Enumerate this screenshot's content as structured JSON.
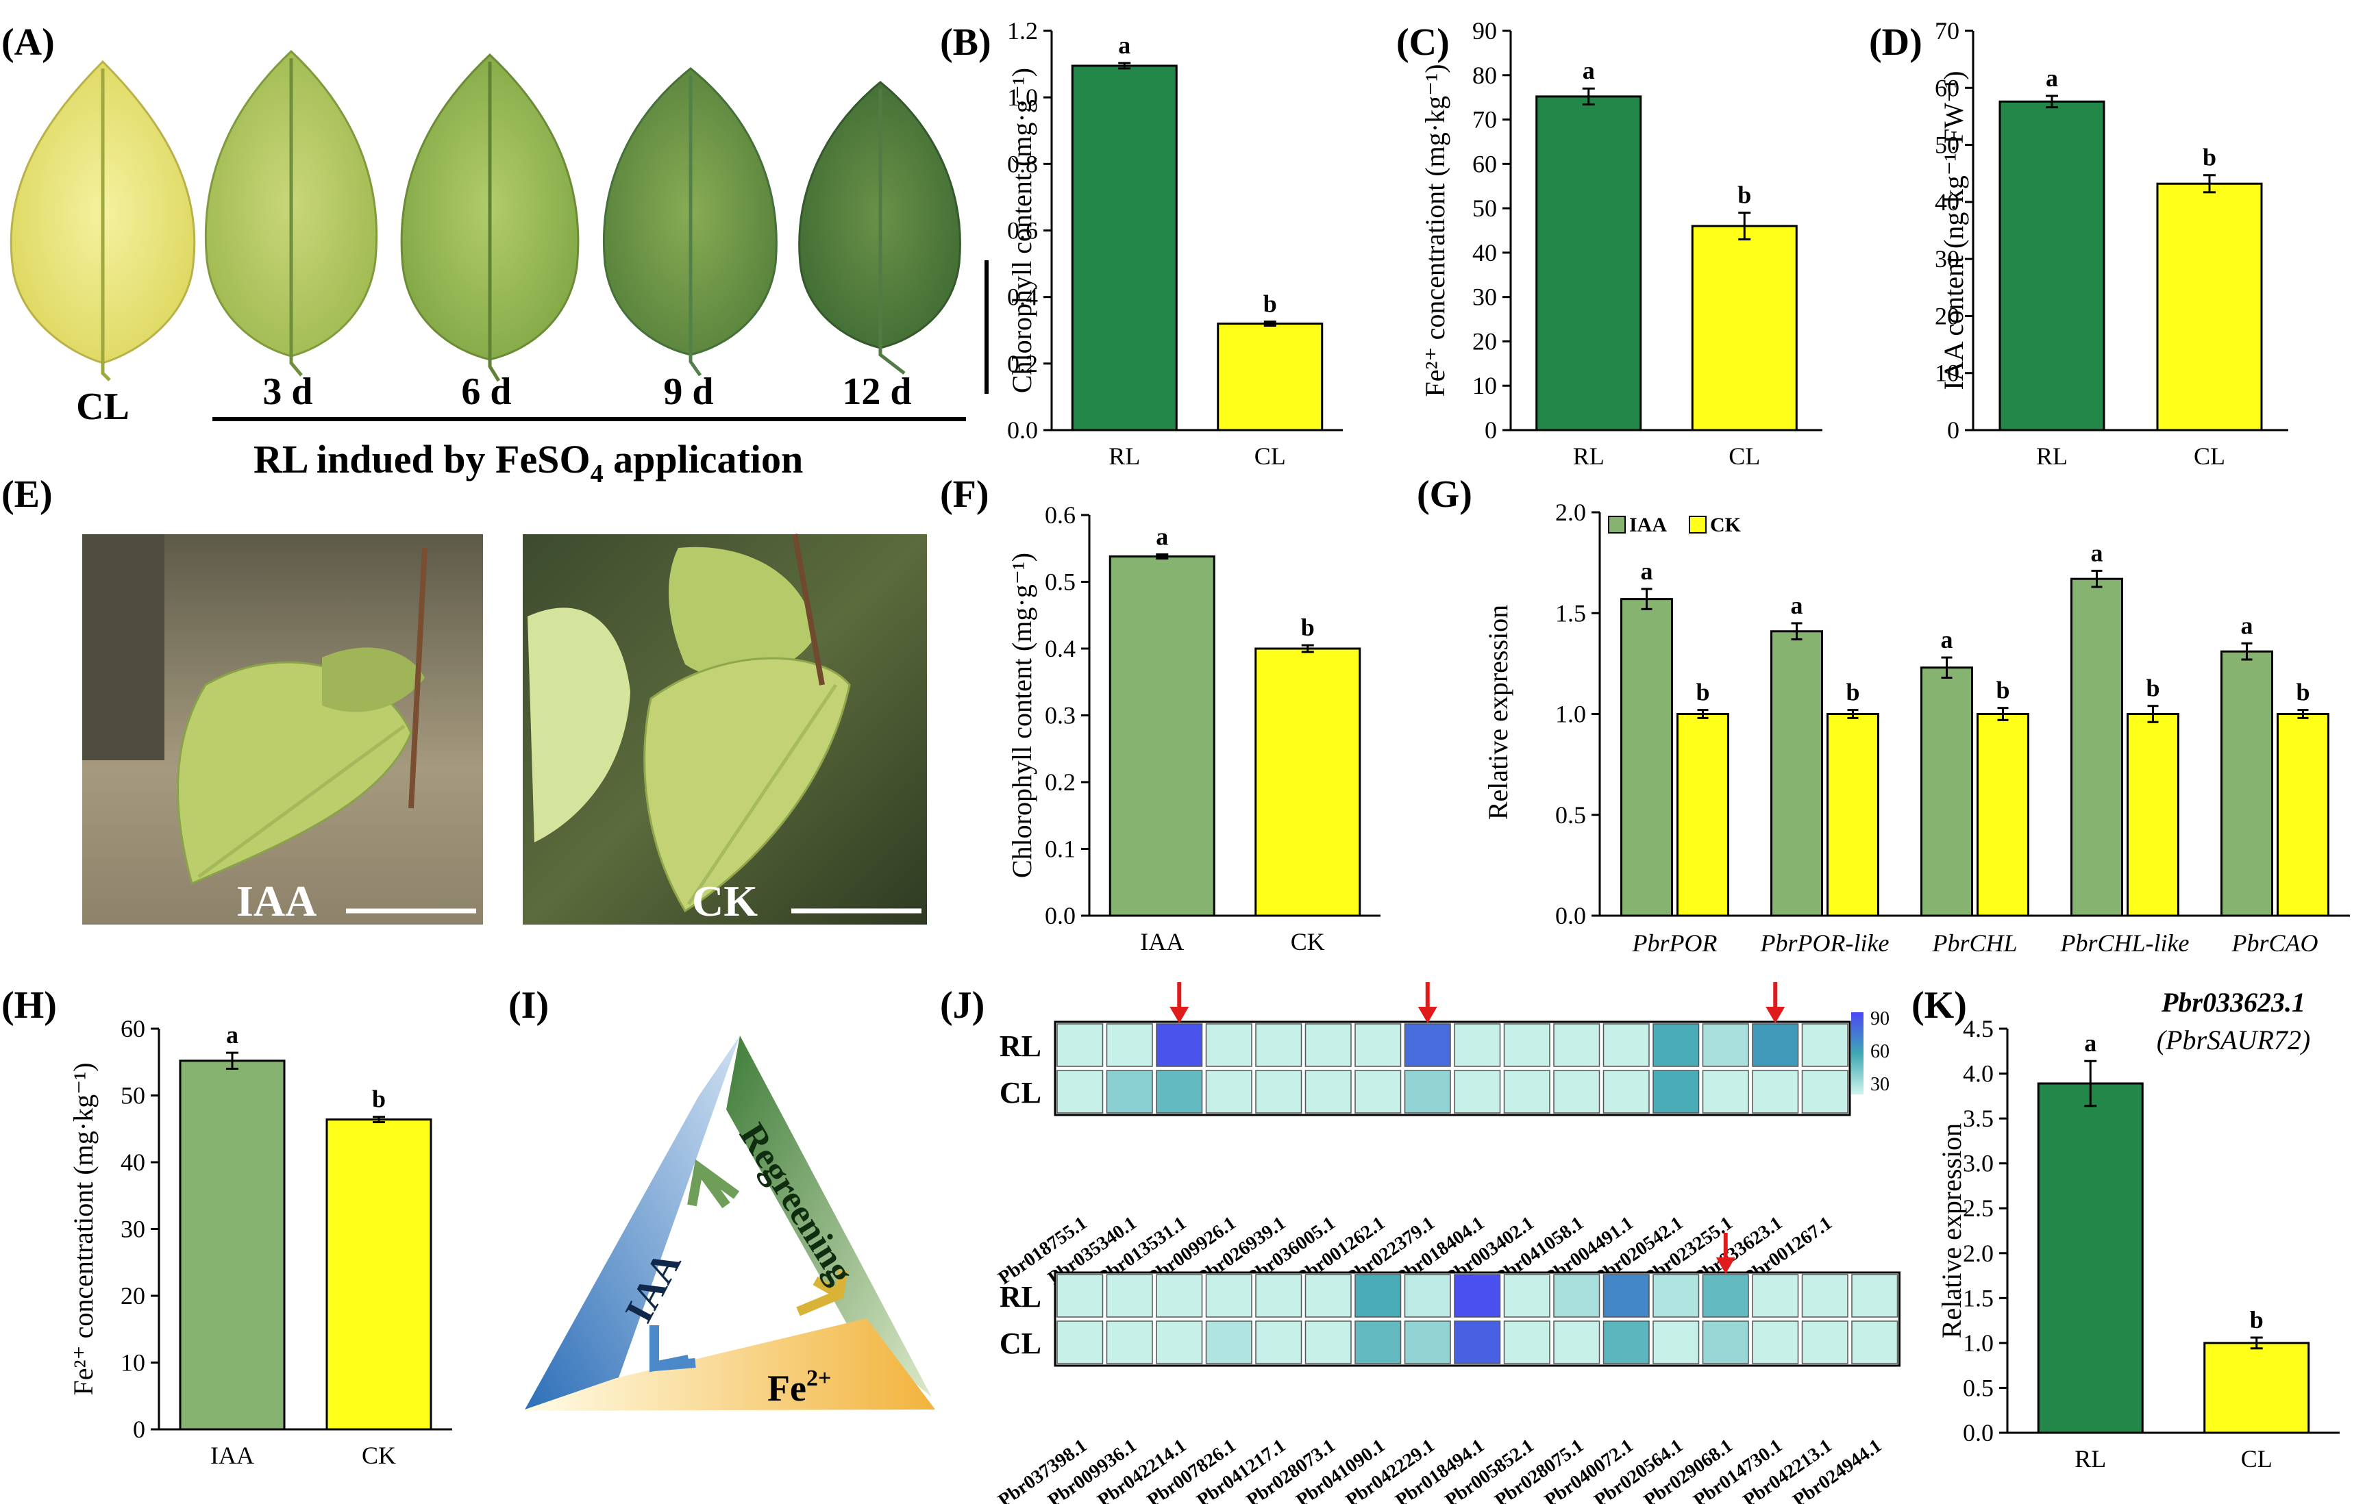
{
  "panels": {
    "A": "(A)",
    "B": "(B)",
    "C": "(C)",
    "D": "(D)",
    "E": "(E)",
    "F": "(F)",
    "G": "(G)",
    "H": "(H)",
    "I": "(I)",
    "J": "(J)",
    "K": "(K)"
  },
  "colors": {
    "rl": "#23874a",
    "cl": "#ffff1a",
    "iaa": "#86b470",
    "ck": "#ffff1a",
    "heat_low": "#cff4ec",
    "heat_mid": "#3fa7b3",
    "heat_high": "#4b47f5",
    "arrow": "#e01b1b"
  },
  "leaves": {
    "labels": [
      "CL",
      "3 d",
      "6 d",
      "9 d",
      "12 d"
    ],
    "caption_main": "RL indued by FeSO",
    "caption_sub": "4",
    "caption_end": " application"
  },
  "photos": {
    "left_label": "IAA",
    "right_label": "CK"
  },
  "triangle": {
    "left": "IAA",
    "right": "Regreening",
    "bottom": "Fe",
    "bottom_sup": "2+"
  },
  "chart_data": [
    {
      "id": "B",
      "type": "bar",
      "categories": [
        "RL",
        "CL"
      ],
      "values": [
        1.095,
        0.32
      ],
      "errors": [
        0.008,
        0.006
      ],
      "sig": [
        "a",
        "b"
      ],
      "ylabel": "Chlorophyll content (mg·g⁻¹)",
      "ylim": [
        0,
        1.2
      ],
      "yticks": [
        "0.0",
        "0.2",
        "0.4",
        "0.6",
        "0.8",
        "1.0",
        "1.2"
      ]
    },
    {
      "id": "C",
      "type": "bar",
      "categories": [
        "RL",
        "CL"
      ],
      "values": [
        75.2,
        46.0
      ],
      "errors": [
        1.8,
        3.0
      ],
      "sig": [
        "a",
        "b"
      ],
      "ylabel": "Fe²⁺ concentrationt (mg·kg⁻¹)",
      "ylim": [
        0,
        90
      ],
      "yticks": [
        "0",
        "10",
        "20",
        "30",
        "40",
        "50",
        "60",
        "70",
        "80",
        "90"
      ]
    },
    {
      "id": "D",
      "type": "bar",
      "categories": [
        "RL",
        "CL"
      ],
      "values": [
        57.6,
        43.2
      ],
      "errors": [
        1.0,
        1.5
      ],
      "sig": [
        "a",
        "b"
      ],
      "ylabel": "IAA content (ng·kg⁻¹·FW⁻¹)",
      "ylim": [
        0,
        70
      ],
      "yticks": [
        "0",
        "10",
        "20",
        "30",
        "40",
        "50",
        "60",
        "70"
      ]
    },
    {
      "id": "F",
      "type": "bar",
      "categories": [
        "IAA",
        "CK"
      ],
      "values": [
        0.538,
        0.4
      ],
      "errors": [
        0.003,
        0.005
      ],
      "sig": [
        "a",
        "b"
      ],
      "ylabel": "Chlorophyll content (mg·g⁻¹)",
      "ylim": [
        0,
        0.6
      ],
      "yticks": [
        "0.0",
        "0.1",
        "0.2",
        "0.3",
        "0.4",
        "0.5",
        "0.6"
      ]
    },
    {
      "id": "G",
      "type": "bar",
      "categories": [
        "PbrPOR",
        "PbrPOR-like",
        "PbrCHL",
        "PbrCHL-like",
        "PbrCAO"
      ],
      "series": [
        {
          "name": "IAA",
          "values": [
            1.57,
            1.41,
            1.23,
            1.67,
            1.31
          ],
          "errors": [
            0.05,
            0.04,
            0.05,
            0.04,
            0.04
          ],
          "sig": [
            "a",
            "a",
            "a",
            "a",
            "a"
          ]
        },
        {
          "name": "CK",
          "values": [
            1.0,
            1.0,
            1.0,
            1.0,
            1.0
          ],
          "errors": [
            0.02,
            0.02,
            0.03,
            0.04,
            0.02
          ],
          "sig": [
            "b",
            "b",
            "b",
            "b",
            "b"
          ]
        }
      ],
      "ylabel": "Relative expression",
      "ylim": [
        0,
        2.0
      ],
      "yticks": [
        "0.0",
        "0.5",
        "1.0",
        "1.5",
        "2.0"
      ],
      "legend": "top-left"
    },
    {
      "id": "H",
      "type": "bar",
      "categories": [
        "IAA",
        "CK"
      ],
      "values": [
        55.2,
        46.4
      ],
      "errors": [
        1.2,
        0.4
      ],
      "sig": [
        "a",
        "b"
      ],
      "ylabel": "Fe²⁺ concentrationt (mg·kg⁻¹)",
      "ylim": [
        0,
        60
      ],
      "yticks": [
        "0",
        "10",
        "20",
        "30",
        "40",
        "50",
        "60"
      ]
    },
    {
      "id": "J",
      "type": "heatmap",
      "rows": [
        "RL",
        "CL"
      ],
      "colorbar_ticks": [
        "90",
        "60",
        "30"
      ],
      "color_range": [
        20,
        95
      ],
      "blocks": [
        {
          "genes": [
            "Pbr018755.1",
            "Pbr035340.1",
            "Pbr013531.1",
            "Pbr009926.1",
            "Pbr026939.1",
            "Pbr036005.1",
            "Pbr001262.1",
            "Pbr022379.1",
            "Pbr018404.1",
            "Pbr003402.1",
            "Pbr041058.1",
            "Pbr004491.1",
            "Pbr020542.1",
            "Pbr023255.1",
            "Pbr033623.1",
            "Pbr001267.1"
          ],
          "RL": [
            22,
            22,
            90,
            22,
            22,
            22,
            22,
            80,
            22,
            22,
            22,
            22,
            55,
            30,
            62,
            22
          ],
          "CL": [
            22,
            38,
            48,
            22,
            22,
            22,
            22,
            36,
            22,
            22,
            22,
            22,
            55,
            22,
            22,
            22
          ],
          "arrows": [
            2,
            7,
            14
          ]
        },
        {
          "genes": [
            "Pbr037398.1",
            "Pbr009936.1",
            "Pbr042214.1",
            "Pbr007826.1",
            "Pbr041217.1",
            "Pbr028073.1",
            "Pbr041090.1",
            "Pbr042229.1",
            "Pbr018494.1",
            "Pbr005852.1",
            "Pbr028075.1",
            "Pbr040072.1",
            "Pbr020564.1",
            "Pbr029068.1",
            "Pbr014730.1",
            "Pbr042213.1",
            "Pbr024944.1"
          ],
          "RL": [
            22,
            22,
            22,
            22,
            22,
            22,
            55,
            25,
            92,
            22,
            30,
            70,
            28,
            48,
            22,
            22,
            22
          ],
          "CL": [
            22,
            22,
            22,
            28,
            22,
            22,
            48,
            36,
            85,
            22,
            22,
            50,
            22,
            34,
            22,
            22,
            22
          ],
          "arrows": [
            13
          ]
        }
      ]
    },
    {
      "id": "K",
      "type": "bar",
      "title_line1": "Pbr033623.1",
      "title_line2": "(PbrSAUR72)",
      "categories": [
        "RL",
        "CL"
      ],
      "values": [
        3.89,
        1.0
      ],
      "errors": [
        0.25,
        0.06
      ],
      "sig": [
        "a",
        "b"
      ],
      "ylabel": "Relative expression",
      "ylim": [
        0,
        4.5
      ],
      "yticks": [
        "0.0",
        "0.5",
        "1.0",
        "1.5",
        "2.0",
        "2.5",
        "3.0",
        "3.5",
        "4.0",
        "4.5"
      ]
    }
  ]
}
